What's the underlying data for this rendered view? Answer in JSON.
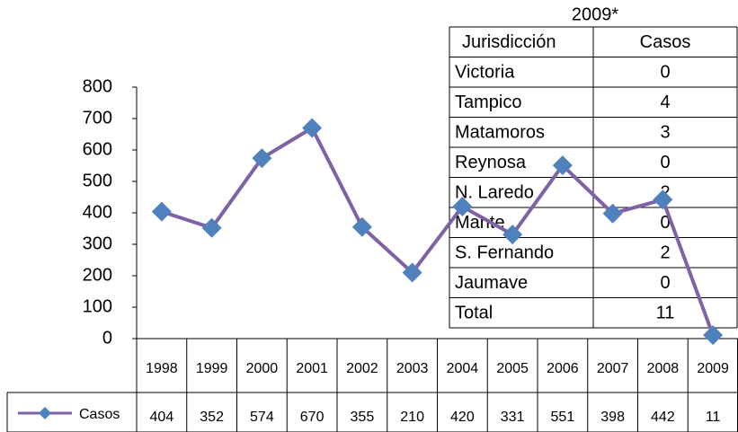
{
  "chart_data": {
    "type": "line",
    "categories": [
      "1998",
      "1999",
      "2000",
      "2001",
      "2002",
      "2003",
      "2004",
      "2005",
      "2006",
      "2007",
      "2008",
      "2009"
    ],
    "series": [
      {
        "name": "Casos",
        "color": "#7f62a6",
        "marker_color": "#4f81bd",
        "values": [
          404,
          352,
          574,
          670,
          355,
          210,
          420,
          331,
          551,
          398,
          442,
          11
        ]
      }
    ],
    "ylim": [
      0,
      800
    ],
    "yticks": [
      0,
      100,
      200,
      300,
      400,
      500,
      600,
      700,
      800
    ]
  },
  "table": {
    "title": "2009*",
    "header": [
      "Jurisdicción",
      "Casos"
    ],
    "rows": [
      [
        "Victoria",
        0
      ],
      [
        "Tampico",
        4
      ],
      [
        "Matamoros",
        3
      ],
      [
        "Reynosa",
        0
      ],
      [
        "N. Laredo",
        2
      ],
      [
        "Mante",
        0
      ],
      [
        "S. Fernando",
        2
      ],
      [
        "Jaumave",
        0
      ],
      [
        "Total",
        11
      ]
    ]
  }
}
